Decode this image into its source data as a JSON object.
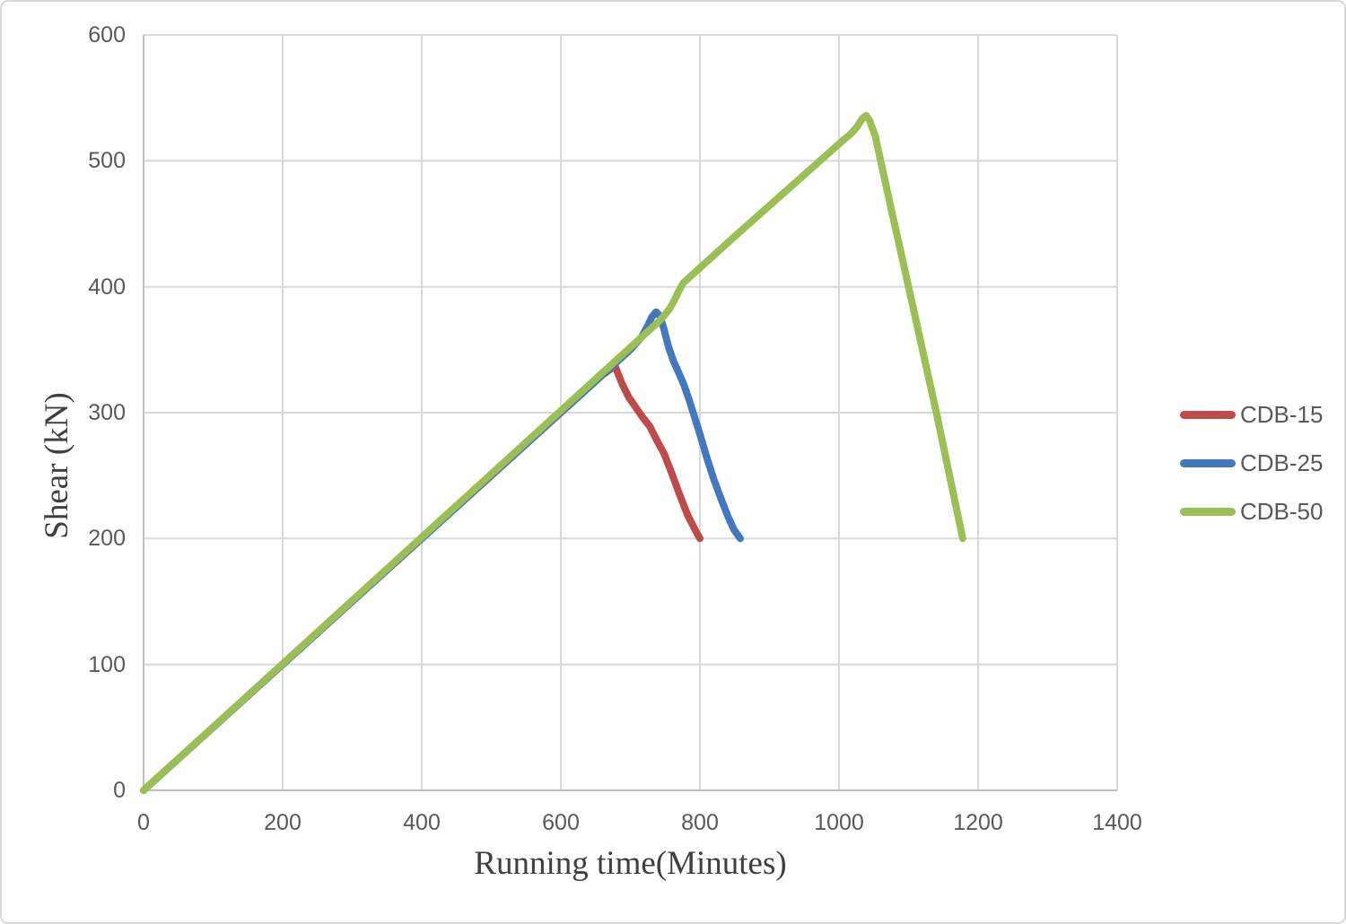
{
  "chart_data": {
    "type": "line",
    "title": "",
    "xlabel": "Running time(Minutes)",
    "ylabel": "Shear (kN)",
    "xlim": [
      0,
      1400
    ],
    "ylim": [
      0,
      600
    ],
    "x_ticks": [
      0,
      200,
      400,
      600,
      800,
      1000,
      1200,
      1400
    ],
    "y_ticks": [
      0,
      100,
      200,
      300,
      400,
      500,
      600
    ],
    "grid": true,
    "legend_position": "right",
    "series": [
      {
        "name": "CDB-15",
        "color": "#BE4B48",
        "points": [
          [
            0,
            0
          ],
          [
            660,
            330
          ],
          [
            678,
            337
          ],
          [
            688,
            323
          ],
          [
            698,
            312
          ],
          [
            708,
            304
          ],
          [
            718,
            296
          ],
          [
            728,
            289
          ],
          [
            738,
            278
          ],
          [
            748,
            268
          ],
          [
            758,
            254
          ],
          [
            770,
            236
          ],
          [
            782,
            219
          ],
          [
            793,
            207
          ],
          [
            800,
            200
          ]
        ]
      },
      {
        "name": "CDB-25",
        "color": "#4377BE",
        "points": [
          [
            0,
            0
          ],
          [
            700,
            350
          ],
          [
            716,
            360
          ],
          [
            724,
            368
          ],
          [
            731,
            376
          ],
          [
            737,
            380
          ],
          [
            742,
            377
          ],
          [
            748,
            367
          ],
          [
            755,
            352
          ],
          [
            762,
            341
          ],
          [
            770,
            331
          ],
          [
            777,
            322
          ],
          [
            784,
            311
          ],
          [
            792,
            297
          ],
          [
            800,
            283
          ],
          [
            810,
            264
          ],
          [
            820,
            247
          ],
          [
            830,
            232
          ],
          [
            840,
            218
          ],
          [
            849,
            207
          ],
          [
            858,
            200
          ]
        ]
      },
      {
        "name": "CDB-50",
        "color": "#9CBF55",
        "points": [
          [
            0,
            0
          ],
          [
            740,
            372
          ],
          [
            750,
            378
          ],
          [
            757,
            383
          ],
          [
            763,
            389
          ],
          [
            769,
            396
          ],
          [
            776,
            403
          ],
          [
            784,
            407
          ],
          [
            850,
            440
          ],
          [
            950,
            489
          ],
          [
            1005,
            516
          ],
          [
            1016,
            521
          ],
          [
            1026,
            527
          ],
          [
            1034,
            534
          ],
          [
            1039,
            536
          ],
          [
            1044,
            532
          ],
          [
            1052,
            520
          ],
          [
            1075,
            462
          ],
          [
            1100,
            400
          ],
          [
            1140,
            300
          ],
          [
            1178,
            200
          ]
        ]
      }
    ]
  },
  "style": {
    "background": "#FFFFFF",
    "border_color": "#D8D8D8",
    "grid_color": "#D9D9D9",
    "axis_color": "#BFBFBF",
    "line_width": 8,
    "tick_label_color": "#595959",
    "axis_title_color": "#3F3F3F",
    "legend_text_color": "#595959"
  }
}
